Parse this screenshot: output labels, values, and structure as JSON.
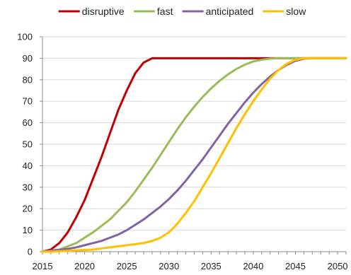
{
  "chart_data": {
    "type": "line",
    "xlim": [
      2015,
      2051
    ],
    "ylim": [
      0,
      100
    ],
    "x_ticks": [
      2015,
      2020,
      2025,
      2030,
      2035,
      2040,
      2045,
      2050
    ],
    "y_ticks": [
      0,
      10,
      20,
      30,
      40,
      50,
      60,
      70,
      80,
      90,
      100
    ],
    "grid": "horizontal",
    "legend_position": "top",
    "x": [
      2015,
      2016,
      2017,
      2018,
      2019,
      2020,
      2021,
      2022,
      2023,
      2024,
      2025,
      2026,
      2027,
      2028,
      2029,
      2030,
      2031,
      2032,
      2033,
      2034,
      2035,
      2036,
      2037,
      2038,
      2039,
      2040,
      2041,
      2042,
      2043,
      2044,
      2045,
      2046,
      2047,
      2048,
      2049,
      2050,
      2051
    ],
    "series": [
      {
        "name": "disruptive",
        "color": "#c00000",
        "values": [
          0,
          1,
          4,
          9,
          16,
          24,
          34,
          44,
          55,
          66,
          75,
          83,
          88,
          90,
          90,
          90,
          90,
          90,
          90,
          90,
          90,
          90,
          90,
          90,
          90,
          90,
          90,
          90,
          90,
          90,
          90,
          90,
          90,
          90,
          90,
          90,
          90
        ]
      },
      {
        "name": "fast",
        "color": "#9bbb59",
        "values": [
          0,
          0.5,
          1,
          2.5,
          4,
          6.5,
          9,
          12,
          15,
          19,
          23,
          28,
          33.5,
          39,
          45,
          51,
          57,
          62.5,
          67.5,
          72,
          76,
          79.5,
          82.5,
          85,
          87,
          88.5,
          89.3,
          89.8,
          90,
          90,
          90,
          90,
          90,
          90,
          90,
          90,
          90
        ]
      },
      {
        "name": "anticipated",
        "color": "#8064a2",
        "values": [
          0,
          0.5,
          0.8,
          1.3,
          2,
          3,
          4,
          5,
          6.5,
          8,
          10,
          12.5,
          15,
          18,
          21,
          24.5,
          28.5,
          33,
          38,
          43,
          48.5,
          54,
          59.5,
          64.5,
          69.5,
          74,
          78,
          81.5,
          84.5,
          87,
          88.8,
          89.8,
          90,
          90,
          90,
          90,
          90
        ]
      },
      {
        "name": "slow",
        "color": "#ffc000",
        "values": [
          0,
          0,
          0.2,
          0.4,
          0.6,
          0.8,
          1,
          1.5,
          2,
          2.5,
          3,
          3.5,
          4,
          5,
          6.5,
          9,
          13,
          18,
          23.5,
          30,
          36.5,
          43.5,
          50.5,
          57.5,
          64,
          70,
          75.5,
          80.5,
          84.5,
          87.5,
          89.3,
          90,
          90,
          90,
          90,
          90,
          90
        ]
      }
    ]
  }
}
